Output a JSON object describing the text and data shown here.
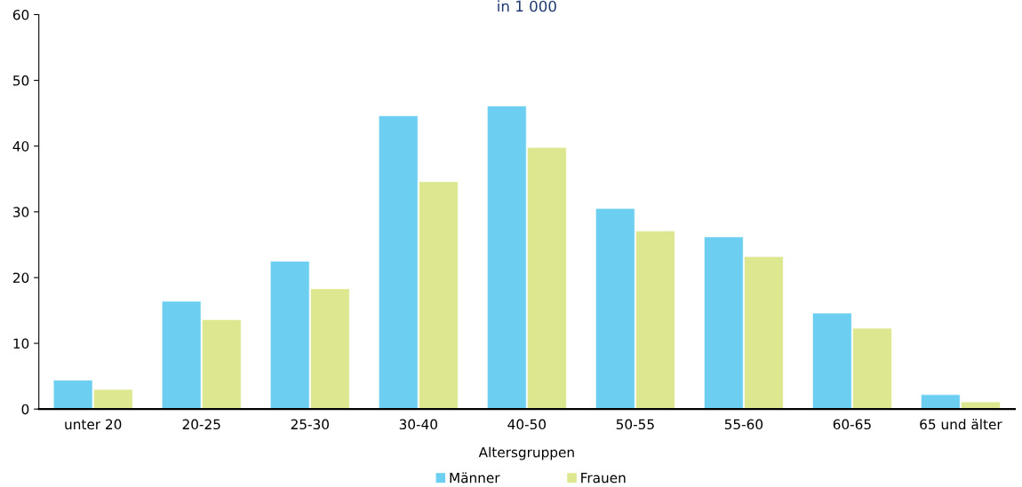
{
  "chart_data": {
    "type": "bar",
    "title": "in 1 000",
    "xlabel": "Altersgruppen",
    "categories": [
      "unter 20",
      "20-25",
      "25-30",
      "30-40",
      "40-50",
      "50-55",
      "55-60",
      "60-65",
      "65 und älter"
    ],
    "series": [
      {
        "name": "Männer",
        "color": "#6ccff2",
        "values": [
          4.4,
          16.4,
          22.5,
          44.6,
          46.1,
          30.5,
          26.2,
          14.6,
          2.2
        ]
      },
      {
        "name": "Frauen",
        "color": "#dde78f",
        "values": [
          3.0,
          13.6,
          18.3,
          34.6,
          39.8,
          27.1,
          23.2,
          12.3,
          1.1
        ]
      }
    ],
    "ylim": [
      0,
      60
    ],
    "yticks": [
      0,
      10,
      20,
      30,
      40,
      50,
      60
    ],
    "grid": false,
    "legend": "bottom"
  }
}
